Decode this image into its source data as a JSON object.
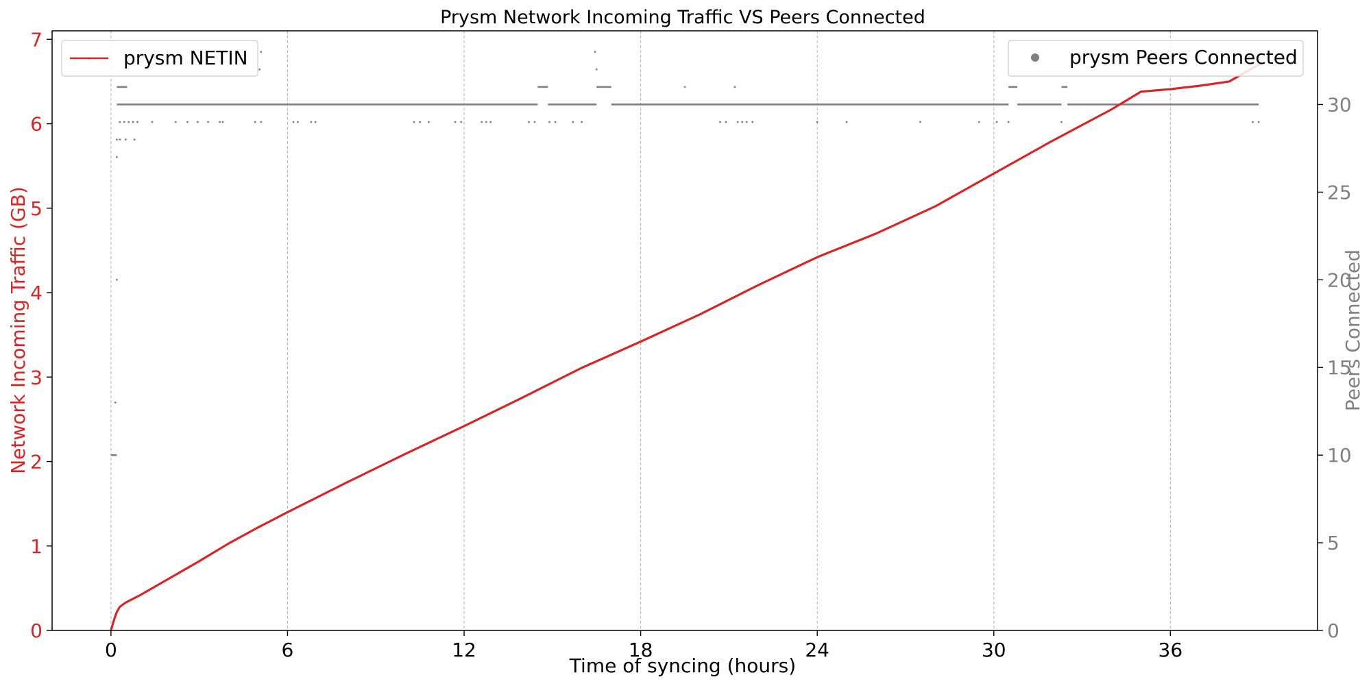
{
  "chart_data": {
    "type": "line",
    "title": "Prysm Network Incoming Traffic VS Peers Connected",
    "xlabel": "Time of syncing (hours)",
    "ylabel_left": "Network Incoming Traffic (GB)",
    "ylabel_right": "Peers Connected",
    "xlim": [
      -2,
      41
    ],
    "ylim_left": [
      0,
      7.1
    ],
    "ylim_right": [
      0,
      34.2
    ],
    "xticks": [
      0,
      6,
      12,
      18,
      24,
      30,
      36
    ],
    "yticks_left": [
      0,
      1,
      2,
      3,
      4,
      5,
      6,
      7
    ],
    "yticks_right": [
      0,
      5,
      10,
      15,
      20,
      25,
      30
    ],
    "x_grid": "dashed vertical lines at each x tick",
    "colors": {
      "netin": "#d62728",
      "peers": "#7f7f7f",
      "left_axis": "#d62728",
      "right_axis": "#808080"
    },
    "legend_left": {
      "label": "prysm NETIN",
      "placement": "top-left"
    },
    "legend_right": {
      "label": "prysm Peers Connected",
      "placement": "top-right"
    },
    "series": [
      {
        "name": "prysm NETIN",
        "axis": "left",
        "style": "line",
        "x": [
          0,
          0.1,
          0.2,
          0.3,
          0.5,
          1,
          2,
          3,
          4,
          5,
          6,
          8,
          10,
          12,
          14,
          16,
          18,
          20,
          22,
          24,
          26,
          28,
          30,
          32,
          34,
          35,
          36,
          37,
          38,
          39.1
        ],
        "y": [
          0,
          0.12,
          0.22,
          0.28,
          0.33,
          0.42,
          0.62,
          0.82,
          1.03,
          1.22,
          1.4,
          1.75,
          2.09,
          2.42,
          2.76,
          3.11,
          3.42,
          3.74,
          4.09,
          4.42,
          4.7,
          5.02,
          5.41,
          5.8,
          6.17,
          6.38,
          6.41,
          6.45,
          6.5,
          6.72
        ]
      },
      {
        "name": "prysm Peers Connected",
        "axis": "right",
        "style": "scatter",
        "segments": [
          {
            "x_start": 0.0,
            "x_end": 0.2,
            "y": 10
          },
          {
            "x_start": 0.2,
            "x_end": 0.55,
            "y": 31
          },
          {
            "x_start": 0.2,
            "x_end": 14.5,
            "y": 30
          },
          {
            "x_start": 14.5,
            "x_end": 14.85,
            "y": 31
          },
          {
            "x_start": 14.85,
            "x_end": 16.5,
            "y": 30
          },
          {
            "x_start": 16.5,
            "x_end": 17.0,
            "y": 31
          },
          {
            "x_start": 17.0,
            "x_end": 30.5,
            "y": 30
          },
          {
            "x_start": 30.5,
            "x_end": 30.8,
            "y": 31
          },
          {
            "x_start": 30.8,
            "x_end": 32.3,
            "y": 30
          },
          {
            "x_start": 32.3,
            "x_end": 32.5,
            "y": 31
          },
          {
            "x_start": 32.5,
            "x_end": 39.0,
            "y": 30
          }
        ],
        "points": [
          [
            0.15,
            13
          ],
          [
            0.2,
            20
          ],
          [
            0.2,
            27
          ],
          [
            0.2,
            28
          ],
          [
            0.3,
            28
          ],
          [
            0.5,
            28
          ],
          [
            0.8,
            28
          ],
          [
            0.3,
            29
          ],
          [
            0.45,
            29
          ],
          [
            0.6,
            29
          ],
          [
            0.75,
            29
          ],
          [
            0.9,
            29
          ],
          [
            1.4,
            29
          ],
          [
            2.2,
            29
          ],
          [
            2.6,
            29
          ],
          [
            2.95,
            29
          ],
          [
            3.3,
            29
          ],
          [
            3.7,
            29
          ],
          [
            3.8,
            29
          ],
          [
            4.9,
            29
          ],
          [
            5.1,
            29
          ],
          [
            6.2,
            29
          ],
          [
            6.35,
            29
          ],
          [
            6.8,
            29
          ],
          [
            6.95,
            29
          ],
          [
            10.3,
            29
          ],
          [
            10.5,
            29
          ],
          [
            10.8,
            29
          ],
          [
            11.7,
            29
          ],
          [
            11.9,
            29
          ],
          [
            12.6,
            29
          ],
          [
            12.75,
            29
          ],
          [
            12.9,
            29
          ],
          [
            14.2,
            29
          ],
          [
            14.4,
            29
          ],
          [
            14.9,
            29
          ],
          [
            15.1,
            29
          ],
          [
            15.7,
            29
          ],
          [
            16.0,
            29
          ],
          [
            20.7,
            29
          ],
          [
            20.9,
            29
          ],
          [
            21.3,
            29
          ],
          [
            21.45,
            29
          ],
          [
            21.6,
            29
          ],
          [
            21.8,
            29
          ],
          [
            24.0,
            29
          ],
          [
            25.0,
            29
          ],
          [
            27.5,
            29
          ],
          [
            29.5,
            29
          ],
          [
            30.1,
            29
          ],
          [
            30.5,
            29
          ],
          [
            32.3,
            29
          ],
          [
            38.8,
            29
          ],
          [
            39.0,
            29
          ],
          [
            5.05,
            32
          ],
          [
            5.1,
            33
          ],
          [
            16.5,
            32
          ],
          [
            16.45,
            33
          ],
          [
            19.5,
            31
          ],
          [
            21.2,
            31
          ]
        ]
      }
    ]
  }
}
